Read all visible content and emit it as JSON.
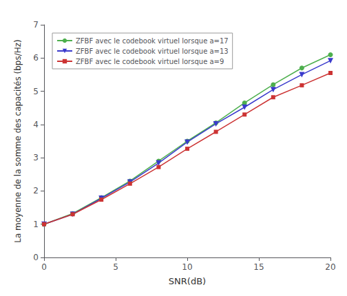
{
  "chart_data": {
    "type": "line",
    "xlabel": "SNR(dB)",
    "ylabel": "La moyenne de la somme des capacités (bps/Hz)",
    "x": [
      0,
      2,
      4,
      6,
      8,
      10,
      12,
      14,
      16,
      18,
      20
    ],
    "series": [
      {
        "name": "ZFBF avec le codebook virtuel lorsque a=17",
        "color": "#4daf4d",
        "marker": "circle",
        "values": [
          1.0,
          1.32,
          1.8,
          2.3,
          2.9,
          3.5,
          4.05,
          4.65,
          5.2,
          5.7,
          6.1
        ]
      },
      {
        "name": "ZFBF avec le codebook virtuel lorsque a=13",
        "color": "#3a3acc",
        "marker": "triangle_down",
        "values": [
          1.0,
          1.3,
          1.78,
          2.27,
          2.84,
          3.47,
          4.02,
          4.52,
          5.05,
          5.5,
          5.92
        ]
      },
      {
        "name": "ZFBF avec le codebook virtuel lorsque a=9",
        "color": "#cc3333",
        "marker": "square",
        "values": [
          1.0,
          1.3,
          1.74,
          2.22,
          2.72,
          3.27,
          3.78,
          4.3,
          4.82,
          5.18,
          5.55
        ]
      }
    ],
    "xlim": [
      0,
      20
    ],
    "ylim": [
      0,
      7
    ],
    "xticks": [
      0,
      5,
      10,
      15,
      20
    ],
    "yticks": [
      0,
      1,
      2,
      3,
      4,
      5,
      6,
      7
    ],
    "grid": false,
    "legend": "upper left"
  }
}
